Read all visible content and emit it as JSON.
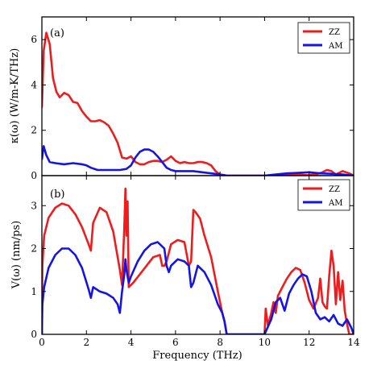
{
  "colors": {
    "zz": "#ee1c1c",
    "am": "#1414e6",
    "axis": "#000000"
  },
  "chart_data": [
    {
      "type": "line",
      "panel_label": "(a)",
      "xlabel": "",
      "ylabel": "κ(ω) (W/m-K/THz)",
      "xlim": [
        0,
        14
      ],
      "ylim": [
        0,
        7
      ],
      "yticks": [
        0,
        2,
        4,
        6
      ],
      "ytick_labels": [
        "0",
        "2",
        "4",
        "6"
      ],
      "legend_position": "top-right",
      "series": [
        {
          "name": "ZZ",
          "color_key": "zz",
          "x": [
            0,
            0.08,
            0.2,
            0.35,
            0.5,
            0.65,
            0.8,
            1.0,
            1.2,
            1.4,
            1.6,
            1.8,
            2.0,
            2.2,
            2.4,
            2.6,
            2.8,
            3.0,
            3.2,
            3.4,
            3.6,
            3.8,
            4.0,
            4.2,
            4.4,
            4.6,
            4.8,
            5.0,
            5.2,
            5.4,
            5.6,
            5.8,
            6.0,
            6.2,
            6.4,
            6.6,
            6.8,
            7.0,
            7.2,
            7.4,
            7.6,
            7.8,
            8.0,
            8.2,
            8.3,
            10.0,
            11.0,
            11.5,
            11.9,
            12.3,
            12.6,
            12.8,
            13.0,
            13.2,
            13.5,
            13.8,
            14.0
          ],
          "y": [
            3.0,
            5.5,
            6.3,
            5.8,
            4.3,
            3.7,
            3.45,
            3.65,
            3.55,
            3.25,
            3.2,
            2.85,
            2.6,
            2.4,
            2.4,
            2.45,
            2.35,
            2.2,
            1.85,
            1.45,
            0.8,
            0.75,
            0.85,
            0.6,
            0.5,
            0.5,
            0.6,
            0.65,
            0.65,
            0.6,
            0.7,
            0.85,
            0.65,
            0.55,
            0.6,
            0.55,
            0.55,
            0.6,
            0.6,
            0.55,
            0.45,
            0.2,
            0.05,
            0.02,
            0.0,
            0.0,
            0.02,
            0.05,
            0.02,
            0.05,
            0.15,
            0.25,
            0.2,
            0.05,
            0.2,
            0.1,
            0.0
          ]
        },
        {
          "name": "AM",
          "color_key": "am",
          "x": [
            0,
            0.08,
            0.2,
            0.35,
            0.6,
            1.0,
            1.4,
            1.8,
            2.0,
            2.2,
            2.5,
            3.0,
            3.5,
            3.8,
            4.0,
            4.2,
            4.4,
            4.6,
            4.8,
            5.0,
            5.2,
            5.4,
            5.6,
            5.8,
            6.0,
            6.4,
            6.8,
            7.2,
            7.6,
            8.0,
            8.3,
            10.0,
            10.5,
            11.0,
            11.5,
            12.0,
            12.5,
            13.0,
            13.5,
            14.0
          ],
          "y": [
            0.7,
            1.3,
            0.9,
            0.6,
            0.55,
            0.5,
            0.55,
            0.5,
            0.45,
            0.35,
            0.25,
            0.25,
            0.25,
            0.3,
            0.45,
            0.8,
            1.05,
            1.15,
            1.15,
            1.05,
            0.85,
            0.6,
            0.35,
            0.25,
            0.2,
            0.2,
            0.2,
            0.15,
            0.1,
            0.05,
            0.0,
            0.0,
            0.05,
            0.1,
            0.12,
            0.15,
            0.1,
            0.08,
            0.05,
            0.0
          ]
        }
      ]
    },
    {
      "type": "line",
      "panel_label": "(b)",
      "xlabel": "Frequency (THz)",
      "ylabel": "V(ω) (nm/ps)",
      "xlim": [
        0,
        14
      ],
      "ylim": [
        0,
        3.7
      ],
      "xticks": [
        0,
        2,
        4,
        6,
        8,
        10,
        12,
        14
      ],
      "xtick_labels": [
        "0",
        "2",
        "4",
        "6",
        "8",
        "10",
        "12",
        "14"
      ],
      "yticks": [
        0,
        1,
        2,
        3
      ],
      "ytick_labels": [
        "0",
        "1",
        "2",
        "3"
      ],
      "legend_position": "top-right",
      "series": [
        {
          "name": "ZZ",
          "color_key": "zz",
          "x": [
            0,
            0.02,
            0.1,
            0.3,
            0.6,
            0.9,
            1.2,
            1.5,
            1.8,
            2.1,
            2.2,
            2.3,
            2.6,
            2.9,
            3.2,
            3.5,
            3.6,
            3.7,
            3.75,
            3.8,
            3.85,
            3.9,
            4.1,
            4.4,
            4.7,
            5.0,
            5.3,
            5.4,
            5.5,
            5.6,
            5.8,
            6.1,
            6.4,
            6.6,
            6.7,
            6.8,
            6.9,
            7.1,
            7.3,
            7.6,
            7.9,
            8.1,
            8.2,
            8.3,
            10.0,
            10.05,
            10.15,
            10.3,
            10.4,
            10.5,
            10.6,
            10.8,
            11.0,
            11.2,
            11.4,
            11.6,
            11.8,
            12.0,
            12.2,
            12.4,
            12.5,
            12.6,
            12.7,
            12.8,
            12.9,
            13.0,
            13.1,
            13.2,
            13.3,
            13.4,
            13.5,
            13.6,
            13.7,
            13.8,
            14.0
          ],
          "y": [
            0.0,
            1.6,
            2.3,
            2.72,
            2.95,
            3.05,
            3.0,
            2.8,
            2.5,
            2.1,
            1.95,
            2.6,
            2.95,
            2.85,
            2.4,
            1.5,
            1.15,
            2.5,
            3.4,
            2.3,
            3.1,
            1.1,
            1.2,
            1.4,
            1.6,
            1.8,
            1.85,
            1.6,
            1.6,
            1.7,
            2.1,
            2.2,
            2.15,
            1.6,
            1.7,
            2.9,
            2.85,
            2.7,
            2.3,
            1.8,
            1.0,
            0.5,
            0.3,
            0.0,
            0.0,
            0.6,
            0.2,
            0.5,
            0.75,
            0.5,
            0.9,
            1.1,
            1.3,
            1.45,
            1.55,
            1.5,
            1.2,
            0.8,
            0.6,
            0.85,
            1.3,
            0.75,
            0.65,
            0.6,
            1.35,
            1.95,
            1.6,
            0.7,
            1.45,
            0.8,
            1.25,
            0.55,
            0.25,
            0.0,
            0.0
          ]
        },
        {
          "name": "AM",
          "color_key": "am",
          "x": [
            0,
            0.02,
            0.1,
            0.3,
            0.6,
            0.9,
            1.2,
            1.5,
            1.8,
            2.1,
            2.2,
            2.3,
            2.6,
            2.9,
            3.2,
            3.4,
            3.5,
            3.6,
            3.7,
            3.75,
            3.8,
            3.9,
            4.0,
            4.3,
            4.6,
            4.9,
            5.2,
            5.5,
            5.6,
            5.7,
            5.8,
            6.1,
            6.4,
            6.6,
            6.7,
            6.8,
            7.0,
            7.3,
            7.6,
            7.9,
            8.1,
            8.2,
            8.3,
            10.0,
            10.3,
            10.5,
            10.7,
            10.9,
            11.1,
            11.3,
            11.5,
            11.7,
            11.9,
            12.1,
            12.3,
            12.5,
            12.7,
            12.9,
            13.1,
            13.3,
            13.5,
            13.7,
            13.9,
            14.0
          ],
          "y": [
            0.0,
            0.7,
            1.1,
            1.55,
            1.85,
            2.0,
            2.0,
            1.85,
            1.55,
            1.05,
            0.85,
            1.1,
            1.0,
            0.95,
            0.85,
            0.7,
            0.5,
            1.0,
            1.4,
            1.75,
            1.5,
            1.2,
            1.35,
            1.7,
            1.95,
            2.1,
            2.15,
            2.0,
            1.6,
            1.45,
            1.6,
            1.75,
            1.7,
            1.6,
            1.1,
            1.2,
            1.6,
            1.45,
            1.15,
            0.7,
            0.5,
            0.3,
            0.0,
            0.0,
            0.35,
            0.75,
            0.85,
            0.55,
            0.95,
            1.15,
            1.3,
            1.4,
            1.35,
            1.0,
            0.5,
            0.35,
            0.4,
            0.3,
            0.45,
            0.25,
            0.2,
            0.35,
            0.15,
            0.0
          ]
        }
      ]
    }
  ]
}
